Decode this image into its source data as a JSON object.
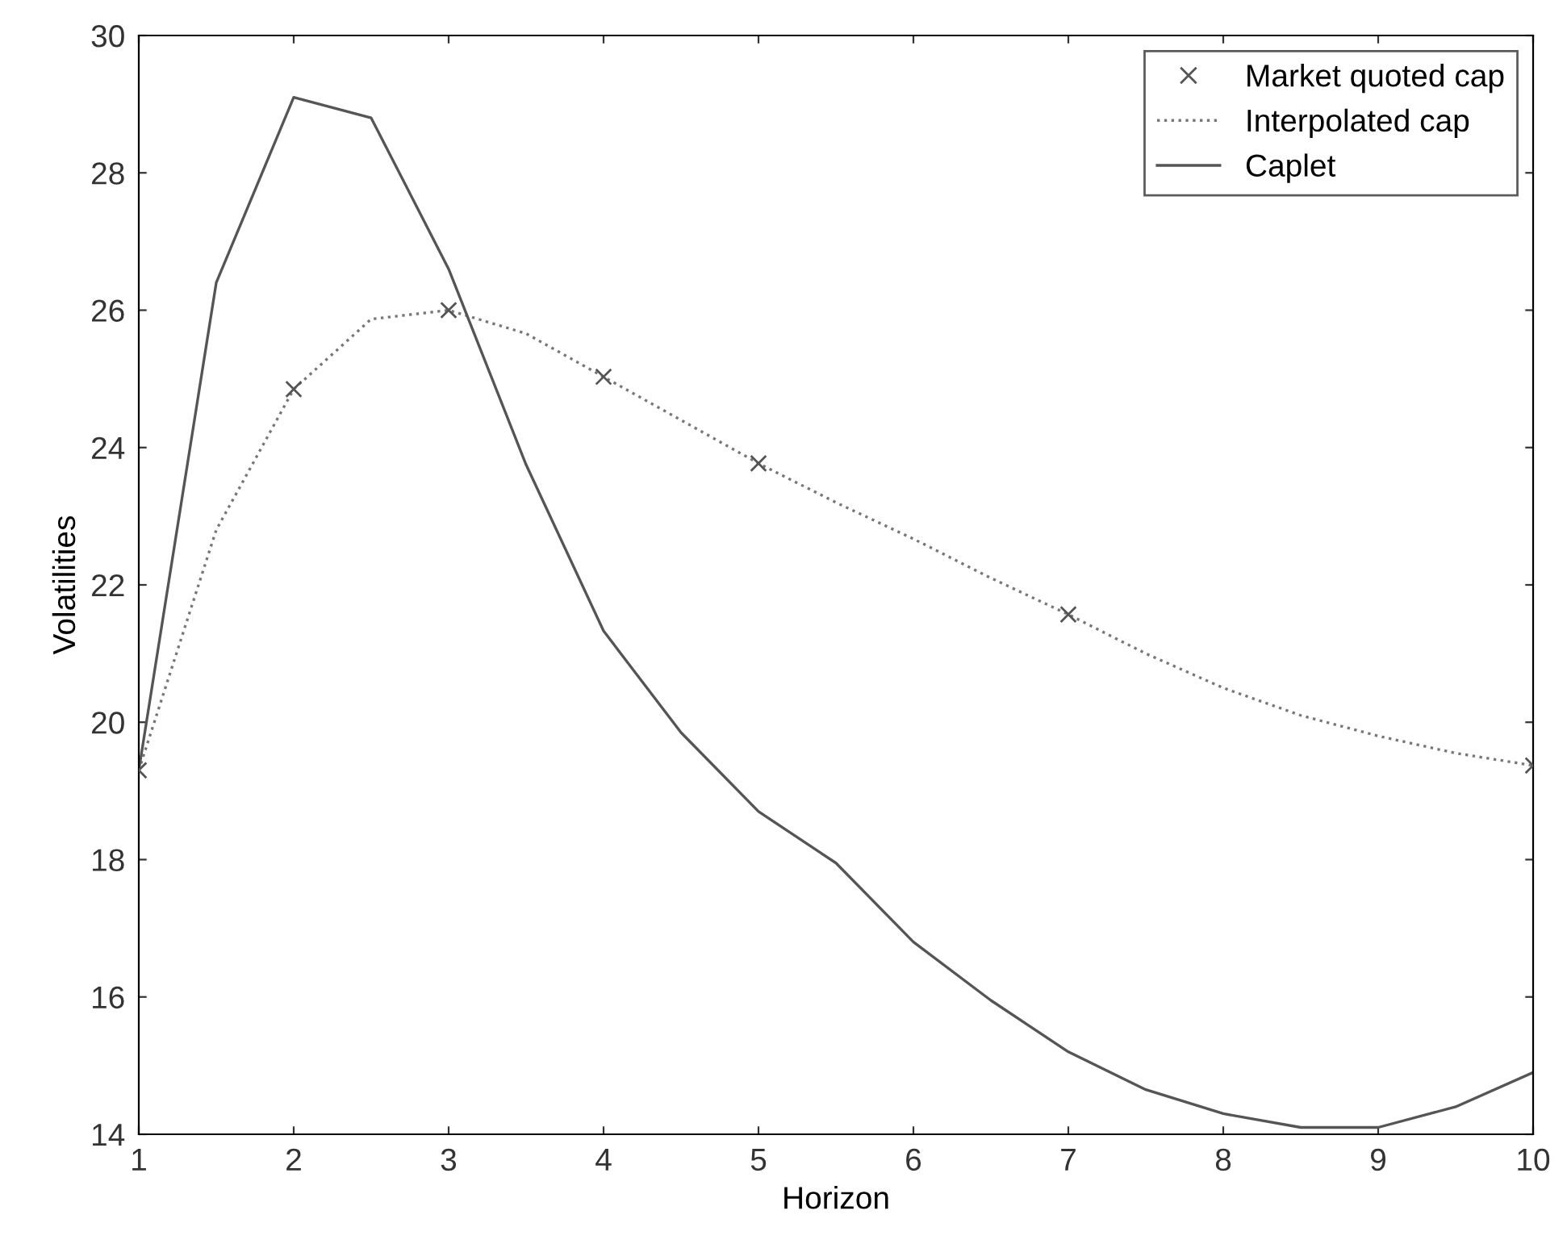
{
  "chart_data": {
    "type": "line",
    "xlabel": "Horizon",
    "ylabel": "Volatilities",
    "xlim": [
      1,
      10
    ],
    "ylim": [
      14,
      30
    ],
    "xticks": [
      1,
      2,
      3,
      4,
      5,
      6,
      7,
      8,
      9,
      10
    ],
    "yticks": [
      14,
      16,
      18,
      20,
      22,
      24,
      26,
      28,
      30
    ],
    "grid": false,
    "legend": "top right",
    "series": [
      {
        "name": "Market quoted cap",
        "type": "scatter",
        "marker": "cross",
        "color": "#555555",
        "x": [
          1,
          2,
          3,
          4,
          5,
          7,
          10
        ],
        "values": [
          19.3,
          24.85,
          26.0,
          25.03,
          23.77,
          21.57,
          19.37
        ]
      },
      {
        "name": "Interpolated cap",
        "type": "line",
        "line_style": "dotted",
        "marker": "none",
        "color": "#777777",
        "x": [
          1,
          1.5,
          2,
          2.5,
          3,
          3.5,
          4,
          4.5,
          5,
          5.5,
          6,
          6.5,
          7,
          7.5,
          8,
          8.5,
          9,
          9.5,
          10
        ],
        "values": [
          19.3,
          22.8,
          24.85,
          25.87,
          26.0,
          25.66,
          25.03,
          24.4,
          23.77,
          23.2,
          22.67,
          22.1,
          21.57,
          21.0,
          20.5,
          20.1,
          19.8,
          19.55,
          19.37
        ]
      },
      {
        "name": "Caplet",
        "line_style": "solid",
        "marker": "none",
        "color": "#555555",
        "x": [
          1,
          1.5,
          2,
          2.5,
          3,
          3.5,
          4,
          4.5,
          5,
          5.5,
          6,
          6.5,
          7,
          7.5,
          8,
          8.5,
          9,
          9.5,
          10
        ],
        "values": [
          19.3,
          26.4,
          29.1,
          28.8,
          26.6,
          23.75,
          21.33,
          19.85,
          18.7,
          17.95,
          16.8,
          15.95,
          15.2,
          14.65,
          14.3,
          14.1,
          14.1,
          14.4,
          14.9
        ]
      }
    ]
  }
}
